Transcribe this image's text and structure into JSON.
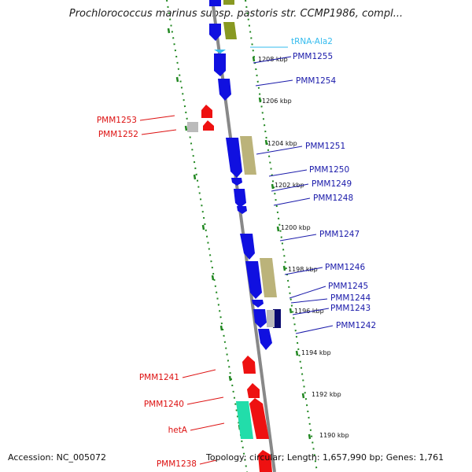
{
  "header": {
    "title": "Prochlorococcus marinus subsp. pastoris str. CCMP1986, compl..."
  },
  "footer": {
    "accession": "Accession: NC_005072",
    "topology": "Topology: circular; Length: 1,657,990 bp; Genes: 1,761"
  },
  "colors": {
    "forward_cds": "#1010e0",
    "reverse_cds": "#ee1111",
    "trna": "#33bbee",
    "olive": "#889922",
    "khaki": "#bbb37a",
    "teal": "#22ddaa",
    "grey": "#bbbbbb",
    "backbone": "#888888",
    "ruler_green": "#228822",
    "label_blue": "#1a1aaa",
    "label_red": "#dd1111"
  },
  "kbp_markers": [
    "1208 kbp",
    "1206 kbp",
    "1204 kbp",
    "1202 kbp",
    "1200 kbp",
    "1198 kbp",
    "1196 kbp",
    "1194 kbp",
    "1192 kbp",
    "1190 kbp"
  ],
  "right_labels": [
    "tRNA-Ala2",
    "PMM1255",
    "PMM1254",
    "PMM1251",
    "PMM1250",
    "PMM1249",
    "PMM1248",
    "PMM1247",
    "PMM1246",
    "PMM1245",
    "PMM1244",
    "PMM1243",
    "PMM1242"
  ],
  "left_labels": [
    "PMM1253",
    "PMM1252",
    "PMM1241",
    "PMM1240",
    "hetA",
    "PMM1238"
  ]
}
